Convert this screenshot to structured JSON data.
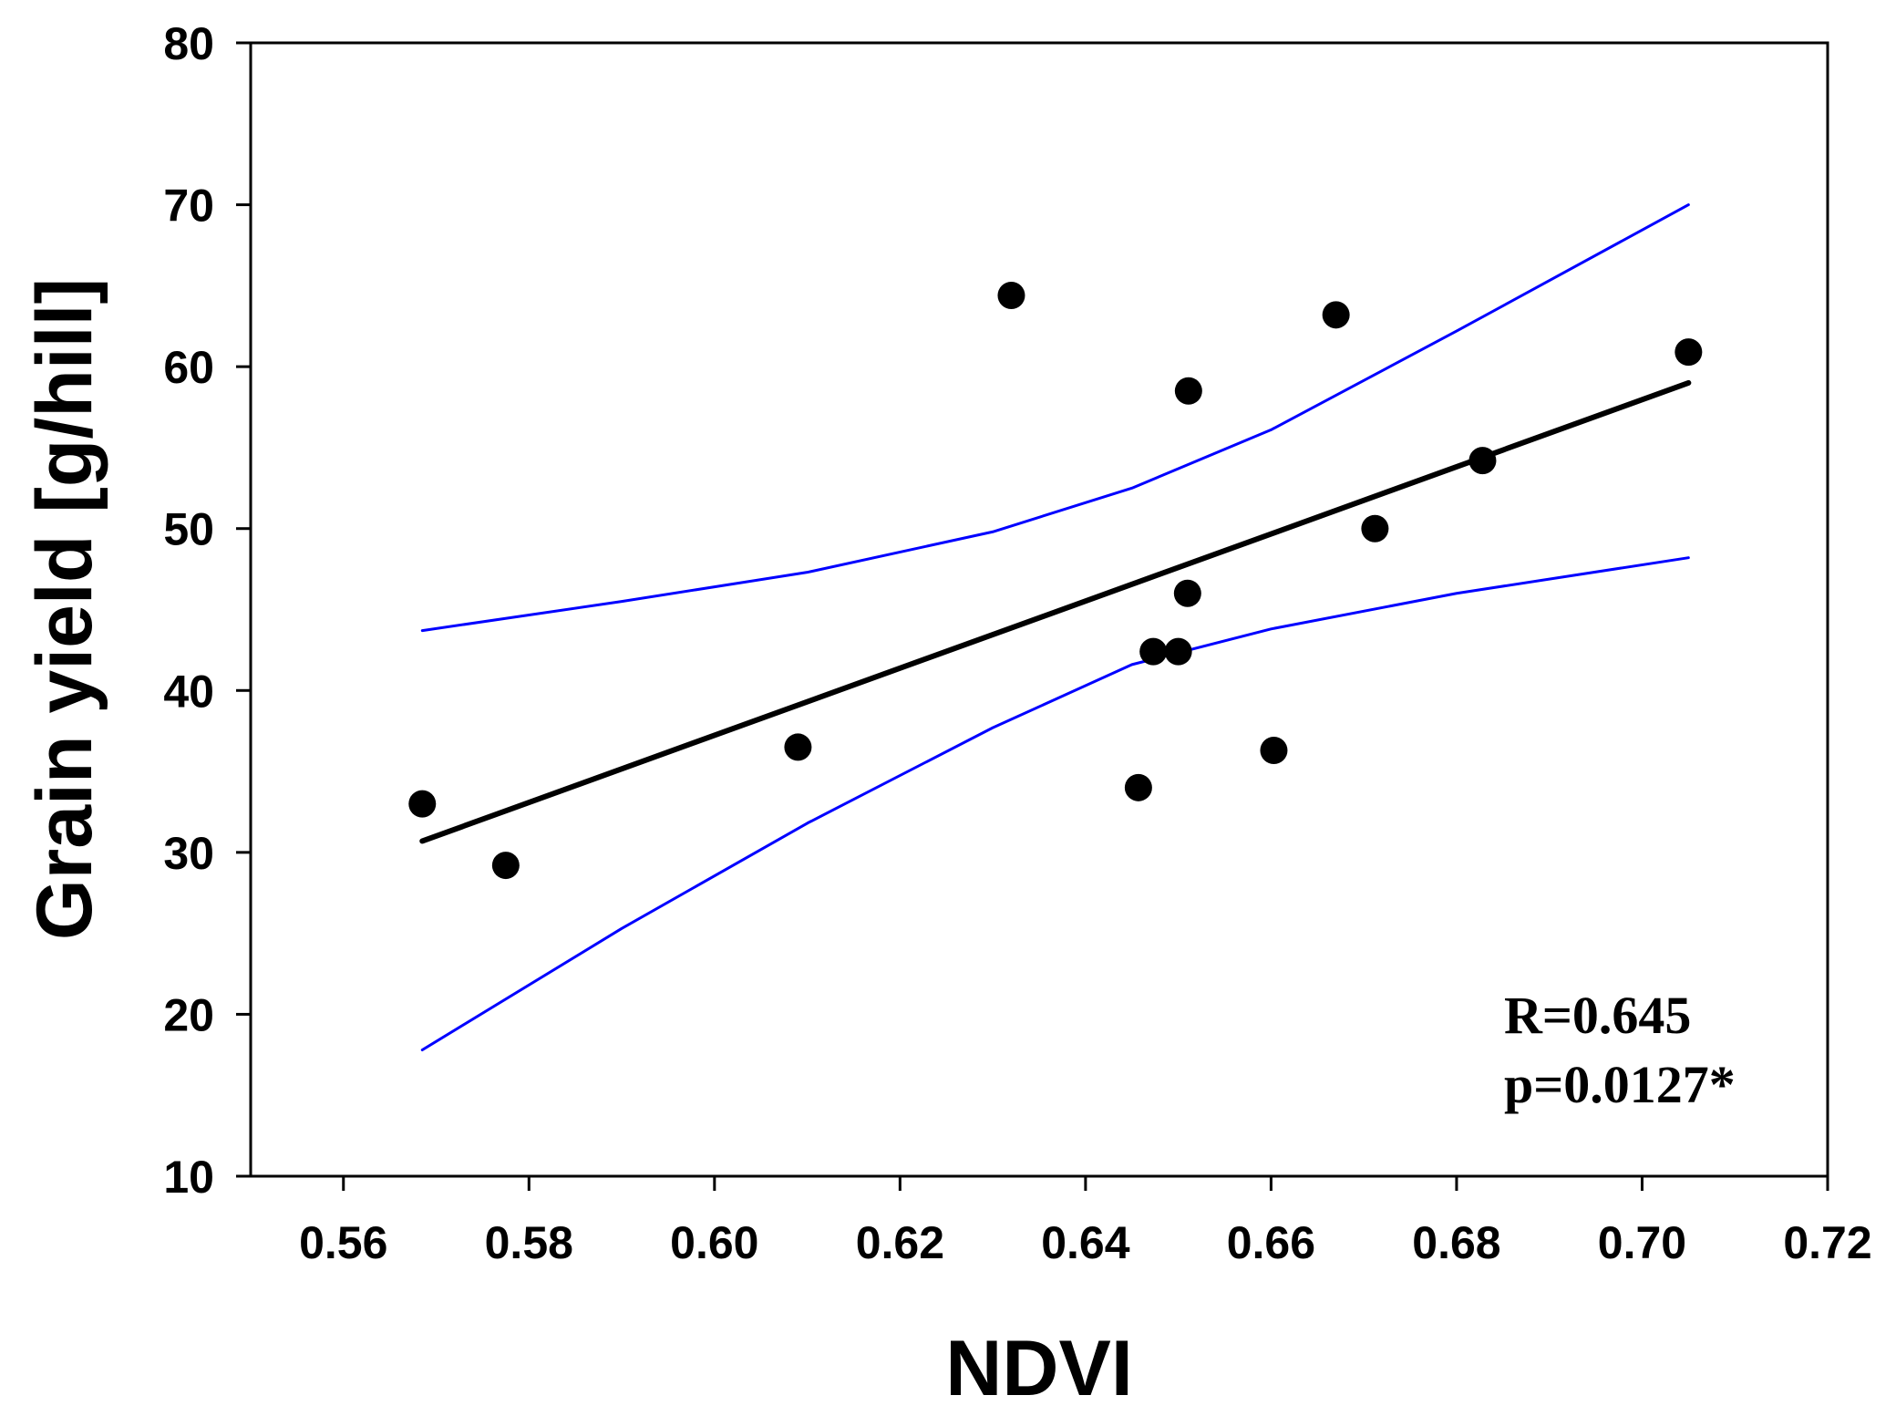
{
  "chart_data": {
    "type": "scatter",
    "title": "",
    "xlabel": "NDVI",
    "ylabel": "Grain yield [g/hill]",
    "xlim": [
      0.55,
      0.72
    ],
    "ylim": [
      10,
      80
    ],
    "xticks": [
      0.56,
      0.58,
      0.6,
      0.62,
      0.64,
      0.66,
      0.68,
      0.7,
      0.72
    ],
    "xtick_labels": [
      "0.56",
      "0.58",
      "0.60",
      "0.62",
      "0.64",
      "0.66",
      "0.68",
      "0.70",
      "0.72"
    ],
    "yticks": [
      10,
      20,
      30,
      40,
      50,
      60,
      70,
      80
    ],
    "ytick_labels": [
      "10",
      "20",
      "30",
      "40",
      "50",
      "60",
      "70",
      "80"
    ],
    "grid": false,
    "series": [
      {
        "name": "observations",
        "kind": "scatter",
        "color": "#000000",
        "points": [
          {
            "x": 0.5685,
            "y": 33.0
          },
          {
            "x": 0.5775,
            "y": 29.2
          },
          {
            "x": 0.609,
            "y": 36.5
          },
          {
            "x": 0.632,
            "y": 64.4
          },
          {
            "x": 0.6457,
            "y": 34.0
          },
          {
            "x": 0.6473,
            "y": 42.4
          },
          {
            "x": 0.65,
            "y": 42.4
          },
          {
            "x": 0.651,
            "y": 46.0
          },
          {
            "x": 0.6511,
            "y": 58.5
          },
          {
            "x": 0.6603,
            "y": 36.3
          },
          {
            "x": 0.667,
            "y": 63.2
          },
          {
            "x": 0.6712,
            "y": 50.0
          },
          {
            "x": 0.6828,
            "y": 54.2
          },
          {
            "x": 0.705,
            "y": 60.9
          }
        ]
      },
      {
        "name": "regression line",
        "kind": "line",
        "color": "#000000",
        "x": [
          0.5685,
          0.705
        ],
        "y": [
          30.7,
          59.0
        ]
      },
      {
        "name": "95% confidence band upper",
        "kind": "line",
        "color": "#0000ff",
        "x": [
          0.5685,
          0.59,
          0.61,
          0.63,
          0.645,
          0.66,
          0.68,
          0.705
        ],
        "y": [
          43.7,
          45.5,
          47.3,
          49.8,
          52.5,
          56.1,
          62.2,
          70.0
        ]
      },
      {
        "name": "95% confidence band lower",
        "kind": "line",
        "color": "#0000ff",
        "x": [
          0.5685,
          0.59,
          0.61,
          0.63,
          0.645,
          0.66,
          0.68,
          0.705
        ],
        "y": [
          17.8,
          25.3,
          31.8,
          37.7,
          41.6,
          43.8,
          46.0,
          48.2
        ]
      }
    ],
    "annotations": [
      "R=0.645",
      "p=0.0127*"
    ]
  }
}
